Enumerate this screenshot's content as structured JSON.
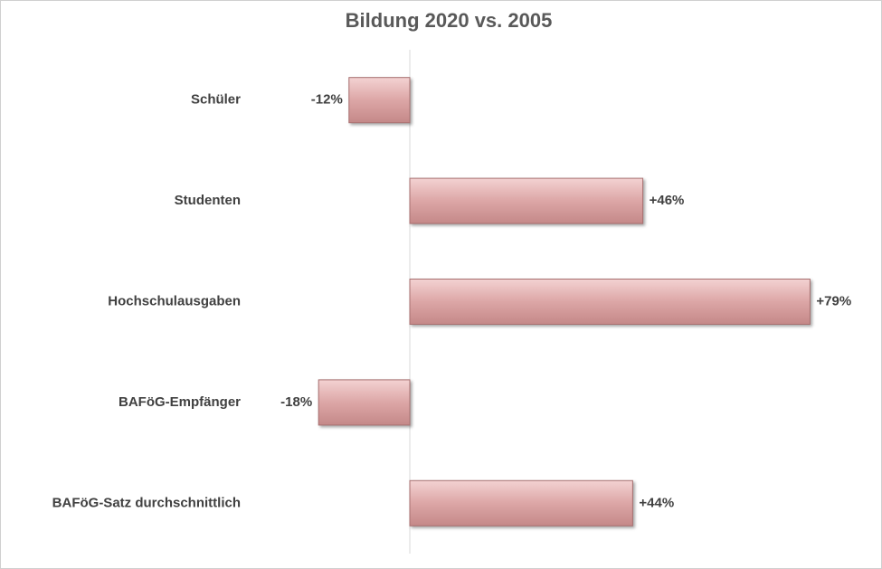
{
  "chart_data": {
    "type": "bar",
    "orientation": "horizontal",
    "title": "Bildung 2020 vs. 2005",
    "categories": [
      "Schüler",
      "Studenten",
      "Hochschulausgaben",
      "BAFöG-Empfänger",
      "BAFöG-Satz durchschnittlich"
    ],
    "values": [
      -12,
      46,
      79,
      -18,
      44
    ],
    "value_labels": [
      "-12%",
      "+46%",
      "+79%",
      "-18%",
      "+44%"
    ],
    "color": "#d9a3a3",
    "xlim": [
      -30,
      90
    ]
  }
}
